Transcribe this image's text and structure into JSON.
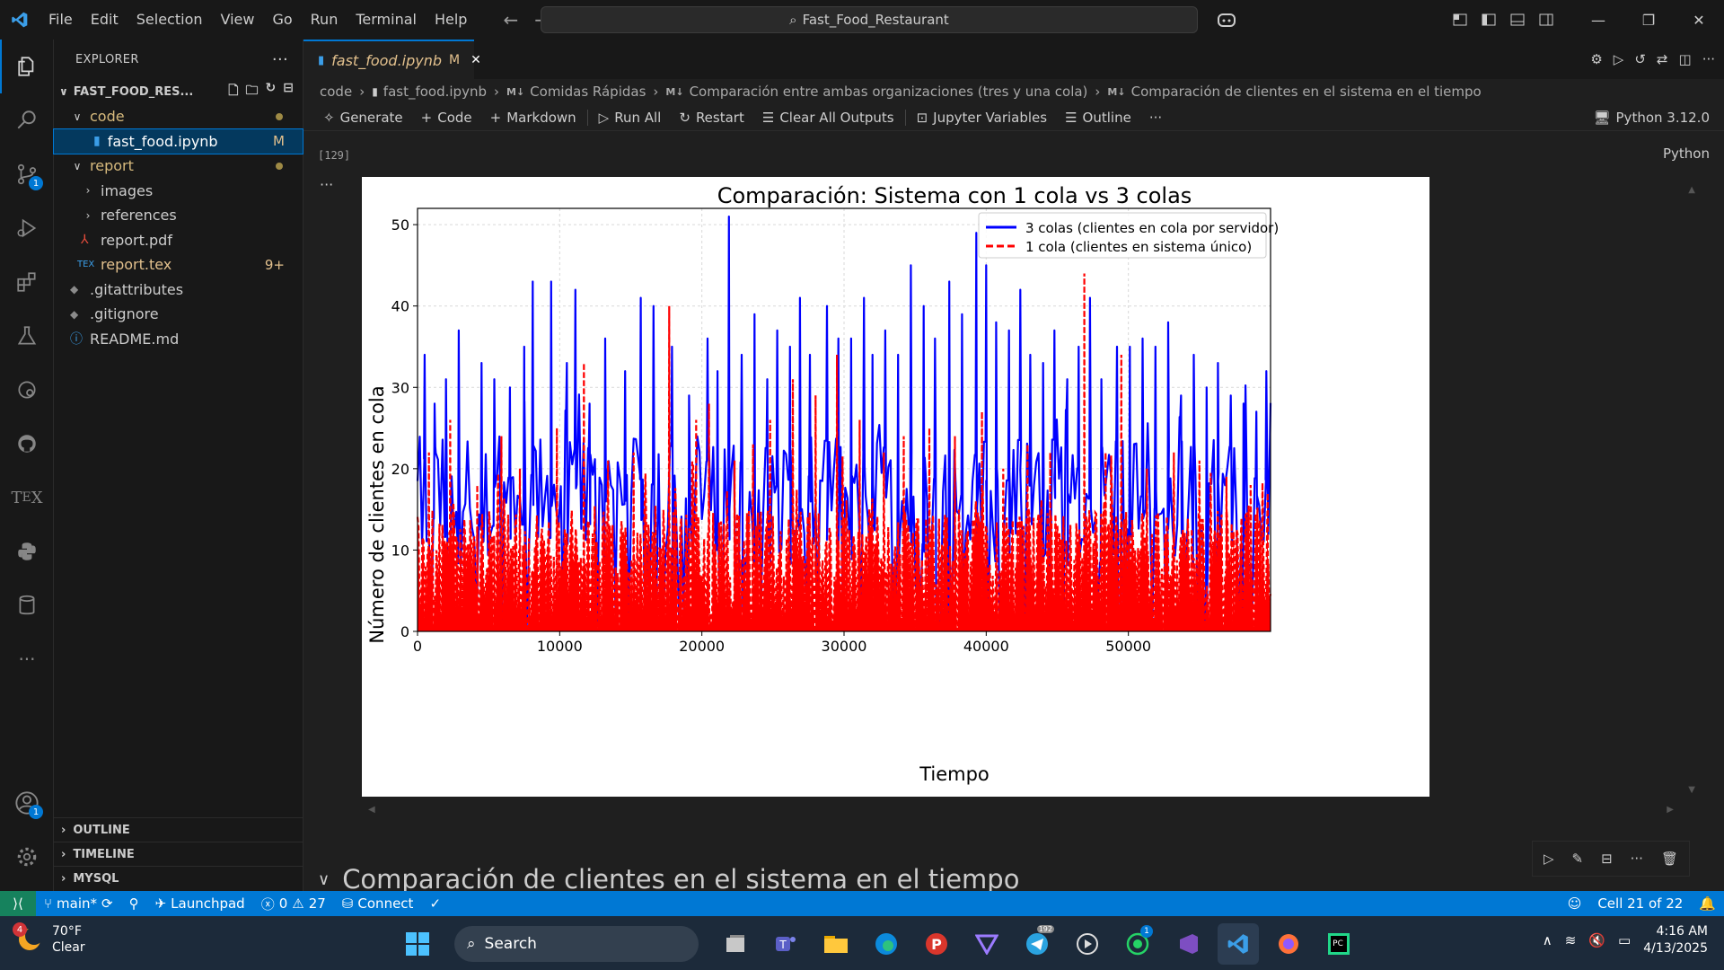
{
  "titlebar": {
    "menu": [
      "File",
      "Edit",
      "Selection",
      "View",
      "Go",
      "Run",
      "Terminal",
      "Help"
    ],
    "search_text": "Fast_Food_Restaurant"
  },
  "sidebar": {
    "header": "EXPLORER",
    "root_folder": "FAST_FOOD_RES...",
    "tree": [
      {
        "label": "code",
        "type": "folder-open",
        "status": "dot"
      },
      {
        "label": "fast_food.ipynb",
        "type": "notebook",
        "status": "M"
      },
      {
        "label": "report",
        "type": "folder-open",
        "status": "dot"
      },
      {
        "label": "images",
        "type": "folder",
        "status": ""
      },
      {
        "label": "references",
        "type": "folder",
        "status": ""
      },
      {
        "label": "report.pdf",
        "type": "pdf",
        "status": ""
      },
      {
        "label": "report.tex",
        "type": "tex",
        "status": "9+"
      },
      {
        "label": ".gitattributes",
        "type": "git",
        "status": ""
      },
      {
        "label": ".gitignore",
        "type": "git",
        "status": ""
      },
      {
        "label": "README.md",
        "type": "info",
        "status": ""
      }
    ],
    "sections": [
      "OUTLINE",
      "TIMELINE",
      "MYSQL"
    ]
  },
  "editor": {
    "tab": {
      "label": "fast_food.ipynb",
      "modified": "M"
    },
    "breadcrumb": [
      "code",
      "fast_food.ipynb",
      "Comidas Rápidas",
      "Comparación entre ambas organizaciones (tres y una cola)",
      "Comparación de clientes en el sistema en el tiempo"
    ],
    "toolbar": [
      "Generate",
      "Code",
      "Markdown",
      "Run All",
      "Restart",
      "Clear All Outputs",
      "Jupyter Variables",
      "Outline"
    ],
    "kernel": "Python 3.12.0",
    "exec_count": "[129]",
    "language": "Python",
    "next_heading": "Comparación de clientes en el sistema en el tiempo"
  },
  "chart_data": {
    "type": "line",
    "title": "Comparación: Sistema con 1 cola vs 3 colas",
    "xlabel": "Tiempo",
    "ylabel": "Número de clientes en cola",
    "xlim": [
      0,
      60000
    ],
    "ylim": [
      0,
      52
    ],
    "xticks": [
      0,
      10000,
      20000,
      30000,
      40000,
      50000
    ],
    "yticks": [
      0,
      10,
      20,
      30,
      40,
      50
    ],
    "grid": true,
    "legend_position": "top-right",
    "series": [
      {
        "name": "3 colas (clientes en cola por servidor)",
        "color": "#0000ff",
        "style": "solid",
        "peaks": [
          [
            500,
            34
          ],
          [
            1200,
            28
          ],
          [
            2000,
            31
          ],
          [
            2900,
            37
          ],
          [
            4500,
            33
          ],
          [
            5400,
            31
          ],
          [
            6500,
            30
          ],
          [
            7500,
            35
          ],
          [
            8100,
            43
          ],
          [
            9400,
            43
          ],
          [
            10500,
            33
          ],
          [
            11100,
            42
          ],
          [
            12100,
            28
          ],
          [
            13200,
            36
          ],
          [
            14600,
            32
          ],
          [
            15700,
            41
          ],
          [
            16600,
            40
          ],
          [
            17900,
            35
          ],
          [
            19100,
            29
          ],
          [
            20400,
            36
          ],
          [
            21100,
            32
          ],
          [
            21900,
            51
          ],
          [
            22800,
            34
          ],
          [
            23700,
            39
          ],
          [
            24600,
            31
          ],
          [
            25300,
            37
          ],
          [
            26200,
            35
          ],
          [
            26900,
            41
          ],
          [
            27600,
            34
          ],
          [
            28800,
            40
          ],
          [
            29600,
            36
          ],
          [
            30500,
            36
          ],
          [
            31400,
            41
          ],
          [
            32000,
            34
          ],
          [
            32900,
            37
          ],
          [
            33800,
            34
          ],
          [
            34700,
            45
          ],
          [
            35600,
            40
          ],
          [
            36400,
            36
          ],
          [
            37400,
            43
          ],
          [
            38300,
            39
          ],
          [
            39300,
            49
          ],
          [
            40000,
            45
          ],
          [
            40700,
            38
          ],
          [
            41600,
            37
          ],
          [
            42400,
            42
          ],
          [
            43100,
            34
          ],
          [
            44000,
            33
          ],
          [
            44800,
            37
          ],
          [
            45700,
            31
          ],
          [
            46500,
            35
          ],
          [
            47300,
            41
          ],
          [
            48100,
            31
          ],
          [
            49200,
            35
          ],
          [
            50100,
            35
          ],
          [
            51000,
            36
          ],
          [
            51900,
            35
          ],
          [
            52800,
            38
          ],
          [
            53700,
            29
          ],
          [
            54600,
            34
          ],
          [
            55500,
            30
          ],
          [
            56300,
            33
          ],
          [
            57200,
            29
          ],
          [
            58100,
            28
          ],
          [
            59000,
            27
          ],
          [
            59700,
            32
          ]
        ]
      },
      {
        "name": "1 cola (clientes en sistema único)",
        "color": "#ff0000",
        "style": "dashed",
        "peaks": [
          [
            800,
            22
          ],
          [
            2300,
            26
          ],
          [
            4200,
            18
          ],
          [
            5900,
            24
          ],
          [
            7200,
            20
          ],
          [
            9800,
            25
          ],
          [
            11700,
            33
          ],
          [
            13400,
            21
          ],
          [
            15200,
            22
          ],
          [
            17700,
            40
          ],
          [
            19600,
            26
          ],
          [
            20500,
            28
          ],
          [
            22300,
            21
          ],
          [
            23600,
            23
          ],
          [
            24800,
            26
          ],
          [
            26400,
            31
          ],
          [
            28000,
            29
          ],
          [
            29500,
            34
          ],
          [
            31100,
            26
          ],
          [
            32800,
            22
          ],
          [
            34200,
            24
          ],
          [
            36000,
            25
          ],
          [
            37800,
            24
          ],
          [
            39700,
            27
          ],
          [
            41200,
            20
          ],
          [
            42900,
            23
          ],
          [
            44500,
            22
          ],
          [
            46900,
            44
          ],
          [
            48400,
            22
          ],
          [
            49500,
            34
          ],
          [
            51300,
            20
          ],
          [
            53200,
            22
          ],
          [
            55000,
            21
          ],
          [
            56900,
            19
          ],
          [
            58600,
            18
          ],
          [
            59800,
            17
          ]
        ]
      }
    ]
  },
  "statusbar": {
    "branch": "main*",
    "launchpad": "Launchpad",
    "errors": "0",
    "warnings": "27",
    "connect": "Connect",
    "cell": "Cell 21 of 22"
  },
  "taskbar": {
    "weather_temp": "70°F",
    "weather_desc": "Clear",
    "weather_badge": "4",
    "search": "Search",
    "telegram_badge": "192",
    "whatsapp_badge": "1",
    "time": "4:16 AM",
    "date": "4/13/2025"
  }
}
